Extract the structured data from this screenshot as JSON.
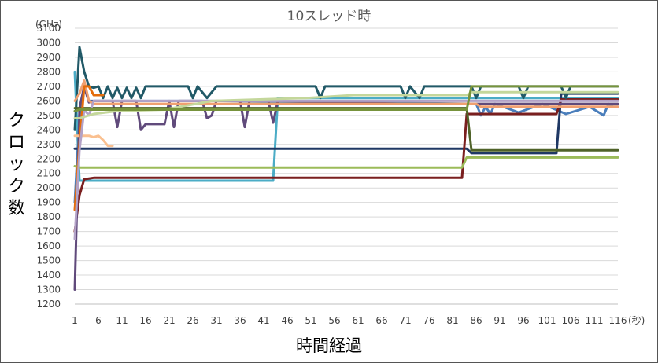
{
  "chart_data": {
    "type": "line",
    "title": "10スレッド時",
    "ylabel": "クロック数",
    "xlabel": "時間経過",
    "y_unit": "(GHz)",
    "x_unit": "(秒)",
    "ylim": [
      1200,
      3100
    ],
    "xlim": [
      1,
      116
    ],
    "y_ticks": [
      "1200",
      "1300",
      "1400",
      "1500",
      "1600",
      "1700",
      "1800",
      "1900",
      "2000",
      "2100",
      "2200",
      "2300",
      "2400",
      "2500",
      "2600",
      "2700",
      "2800",
      "2900",
      "3000",
      "3100"
    ],
    "x_ticks": [
      "1",
      "6",
      "11",
      "16",
      "21",
      "26",
      "31",
      "36",
      "41",
      "46",
      "51",
      "56",
      "61",
      "66",
      "71",
      "76",
      "81",
      "86",
      "91",
      "96",
      "101",
      "106",
      "111",
      "116"
    ],
    "grid": "horizontal",
    "series": [
      {
        "color": "#4a7ebb",
        "points": [
          [
            1,
            1900
          ],
          [
            2,
            2500
          ],
          [
            3,
            2700
          ],
          [
            4,
            2600
          ],
          [
            5,
            2600
          ],
          [
            10,
            2600
          ],
          [
            30,
            2600
          ],
          [
            60,
            2590
          ],
          [
            86,
            2580
          ],
          [
            87,
            2500
          ],
          [
            88,
            2560
          ],
          [
            89,
            2510
          ],
          [
            90,
            2580
          ],
          [
            95,
            2520
          ],
          [
            100,
            2580
          ],
          [
            105,
            2510
          ],
          [
            110,
            2560
          ],
          [
            113,
            2500
          ],
          [
            114,
            2580
          ],
          [
            115,
            2560
          ],
          [
            116,
            2560
          ]
        ]
      },
      {
        "color": "#4bacc6",
        "points": [
          [
            1,
            2800
          ],
          [
            2,
            2050
          ],
          [
            5,
            2050
          ],
          [
            10,
            2050
          ],
          [
            20,
            2050
          ],
          [
            30,
            2050
          ],
          [
            42,
            2050
          ],
          [
            43,
            2050
          ],
          [
            44,
            2620
          ],
          [
            60,
            2620
          ],
          [
            84,
            2620
          ],
          [
            85,
            2620
          ],
          [
            90,
            2620
          ],
          [
            100,
            2620
          ],
          [
            116,
            2620
          ]
        ]
      },
      {
        "color": "#1f3864",
        "points": [
          [
            1,
            2270
          ],
          [
            5,
            2270
          ],
          [
            20,
            2270
          ],
          [
            40,
            2270
          ],
          [
            60,
            2270
          ],
          [
            84,
            2270
          ],
          [
            85,
            2240
          ],
          [
            103,
            2240
          ],
          [
            104,
            2650
          ],
          [
            116,
            2650
          ]
        ]
      },
      {
        "color": "#7a1f1f",
        "points": [
          [
            1,
            1700
          ],
          [
            2,
            1950
          ],
          [
            3,
            2060
          ],
          [
            5,
            2070
          ],
          [
            20,
            2070
          ],
          [
            40,
            2070
          ],
          [
            43,
            2070
          ],
          [
            44,
            2070
          ],
          [
            83,
            2070
          ],
          [
            84,
            2510
          ],
          [
            85,
            2510
          ],
          [
            100,
            2510
          ],
          [
            103,
            2510
          ],
          [
            104,
            2610
          ],
          [
            116,
            2610
          ]
        ]
      },
      {
        "color": "#215967",
        "points": [
          [
            1,
            2400
          ],
          [
            2,
            2970
          ],
          [
            3,
            2800
          ],
          [
            4,
            2700
          ],
          [
            5,
            2690
          ],
          [
            6,
            2700
          ],
          [
            7,
            2620
          ],
          [
            8,
            2700
          ],
          [
            9,
            2620
          ],
          [
            10,
            2690
          ],
          [
            11,
            2620
          ],
          [
            12,
            2690
          ],
          [
            13,
            2620
          ],
          [
            14,
            2690
          ],
          [
            15,
            2620
          ],
          [
            16,
            2700
          ],
          [
            25,
            2700
          ],
          [
            26,
            2620
          ],
          [
            27,
            2700
          ],
          [
            29,
            2620
          ],
          [
            31,
            2700
          ],
          [
            40,
            2700
          ],
          [
            50,
            2700
          ],
          [
            52,
            2700
          ],
          [
            53,
            2620
          ],
          [
            54,
            2700
          ],
          [
            70,
            2700
          ],
          [
            71,
            2620
          ],
          [
            72,
            2700
          ],
          [
            74,
            2620
          ],
          [
            75,
            2700
          ],
          [
            85,
            2700
          ],
          [
            86,
            2620
          ],
          [
            87,
            2700
          ],
          [
            95,
            2700
          ],
          [
            96,
            2620
          ],
          [
            97,
            2700
          ],
          [
            104,
            2700
          ],
          [
            105,
            2620
          ],
          [
            106,
            2700
          ],
          [
            116,
            2700
          ]
        ]
      },
      {
        "color": "#604a7b",
        "points": [
          [
            1,
            1300
          ],
          [
            2,
            2550
          ],
          [
            3,
            2700
          ],
          [
            4,
            2590
          ],
          [
            5,
            2600
          ],
          [
            9,
            2600
          ],
          [
            10,
            2420
          ],
          [
            11,
            2600
          ],
          [
            14,
            2600
          ],
          [
            15,
            2400
          ],
          [
            16,
            2440
          ],
          [
            20,
            2440
          ],
          [
            21,
            2600
          ],
          [
            22,
            2420
          ],
          [
            23,
            2600
          ],
          [
            28,
            2600
          ],
          [
            29,
            2480
          ],
          [
            30,
            2500
          ],
          [
            31,
            2600
          ],
          [
            36,
            2600
          ],
          [
            37,
            2420
          ],
          [
            38,
            2600
          ],
          [
            42,
            2600
          ],
          [
            43,
            2450
          ],
          [
            44,
            2600
          ],
          [
            60,
            2590
          ],
          [
            70,
            2580
          ],
          [
            84,
            2580
          ],
          [
            86,
            2580
          ],
          [
            116,
            2580
          ]
        ]
      },
      {
        "color": "#9bbb59",
        "points": [
          [
            1,
            2150
          ],
          [
            2,
            2140
          ],
          [
            10,
            2140
          ],
          [
            30,
            2140
          ],
          [
            60,
            2140
          ],
          [
            83,
            2140
          ],
          [
            84,
            2210
          ],
          [
            100,
            2210
          ],
          [
            116,
            2210
          ]
        ]
      },
      {
        "color": "#4f6228",
        "points": [
          [
            1,
            2550
          ],
          [
            2,
            2550
          ],
          [
            10,
            2550
          ],
          [
            30,
            2550
          ],
          [
            60,
            2550
          ],
          [
            84,
            2550
          ],
          [
            85,
            2260
          ],
          [
            100,
            2260
          ],
          [
            116,
            2260
          ]
        ]
      },
      {
        "color": "#fac090",
        "points": [
          [
            1,
            2360
          ],
          [
            2,
            2360
          ],
          [
            4,
            2360
          ],
          [
            5,
            2350
          ],
          [
            6,
            2360
          ],
          [
            7,
            2330
          ],
          [
            8,
            2290
          ],
          [
            9,
            2290
          ]
        ]
      },
      {
        "color": "#f0a070",
        "points": [
          [
            1,
            2600
          ],
          [
            2,
            2650
          ],
          [
            3,
            2740
          ],
          [
            4,
            2600
          ],
          [
            5,
            2580
          ],
          [
            20,
            2580
          ],
          [
            60,
            2580
          ],
          [
            86,
            2580
          ],
          [
            87,
            2560
          ],
          [
            116,
            2560
          ]
        ]
      },
      {
        "color": "#e46c0a",
        "points": [
          [
            1,
            1850
          ],
          [
            2,
            2300
          ],
          [
            3,
            2700
          ],
          [
            4,
            2700
          ],
          [
            5,
            2640
          ],
          [
            6,
            2640
          ],
          [
            7,
            2640
          ]
        ]
      },
      {
        "color": "#b3a2c7",
        "points": [
          [
            1,
            1650
          ],
          [
            2,
            2260
          ],
          [
            3,
            2540
          ],
          [
            4,
            2500
          ],
          [
            5,
            2600
          ],
          [
            20,
            2600
          ],
          [
            60,
            2600
          ],
          [
            100,
            2600
          ],
          [
            116,
            2600
          ]
        ]
      },
      {
        "color": "#c4d79b",
        "points": [
          [
            1,
            2480
          ],
          [
            2,
            2480
          ],
          [
            5,
            2510
          ],
          [
            10,
            2530
          ],
          [
            20,
            2540
          ],
          [
            30,
            2600
          ],
          [
            50,
            2620
          ],
          [
            60,
            2640
          ],
          [
            84,
            2640
          ],
          [
            85,
            2660
          ],
          [
            116,
            2660
          ]
        ]
      },
      {
        "color": "#77933c",
        "points": [
          [
            1,
            2530
          ],
          [
            2,
            2540
          ],
          [
            10,
            2540
          ],
          [
            30,
            2540
          ],
          [
            60,
            2540
          ],
          [
            84,
            2540
          ],
          [
            85,
            2700
          ],
          [
            116,
            2700
          ]
        ]
      }
    ]
  }
}
